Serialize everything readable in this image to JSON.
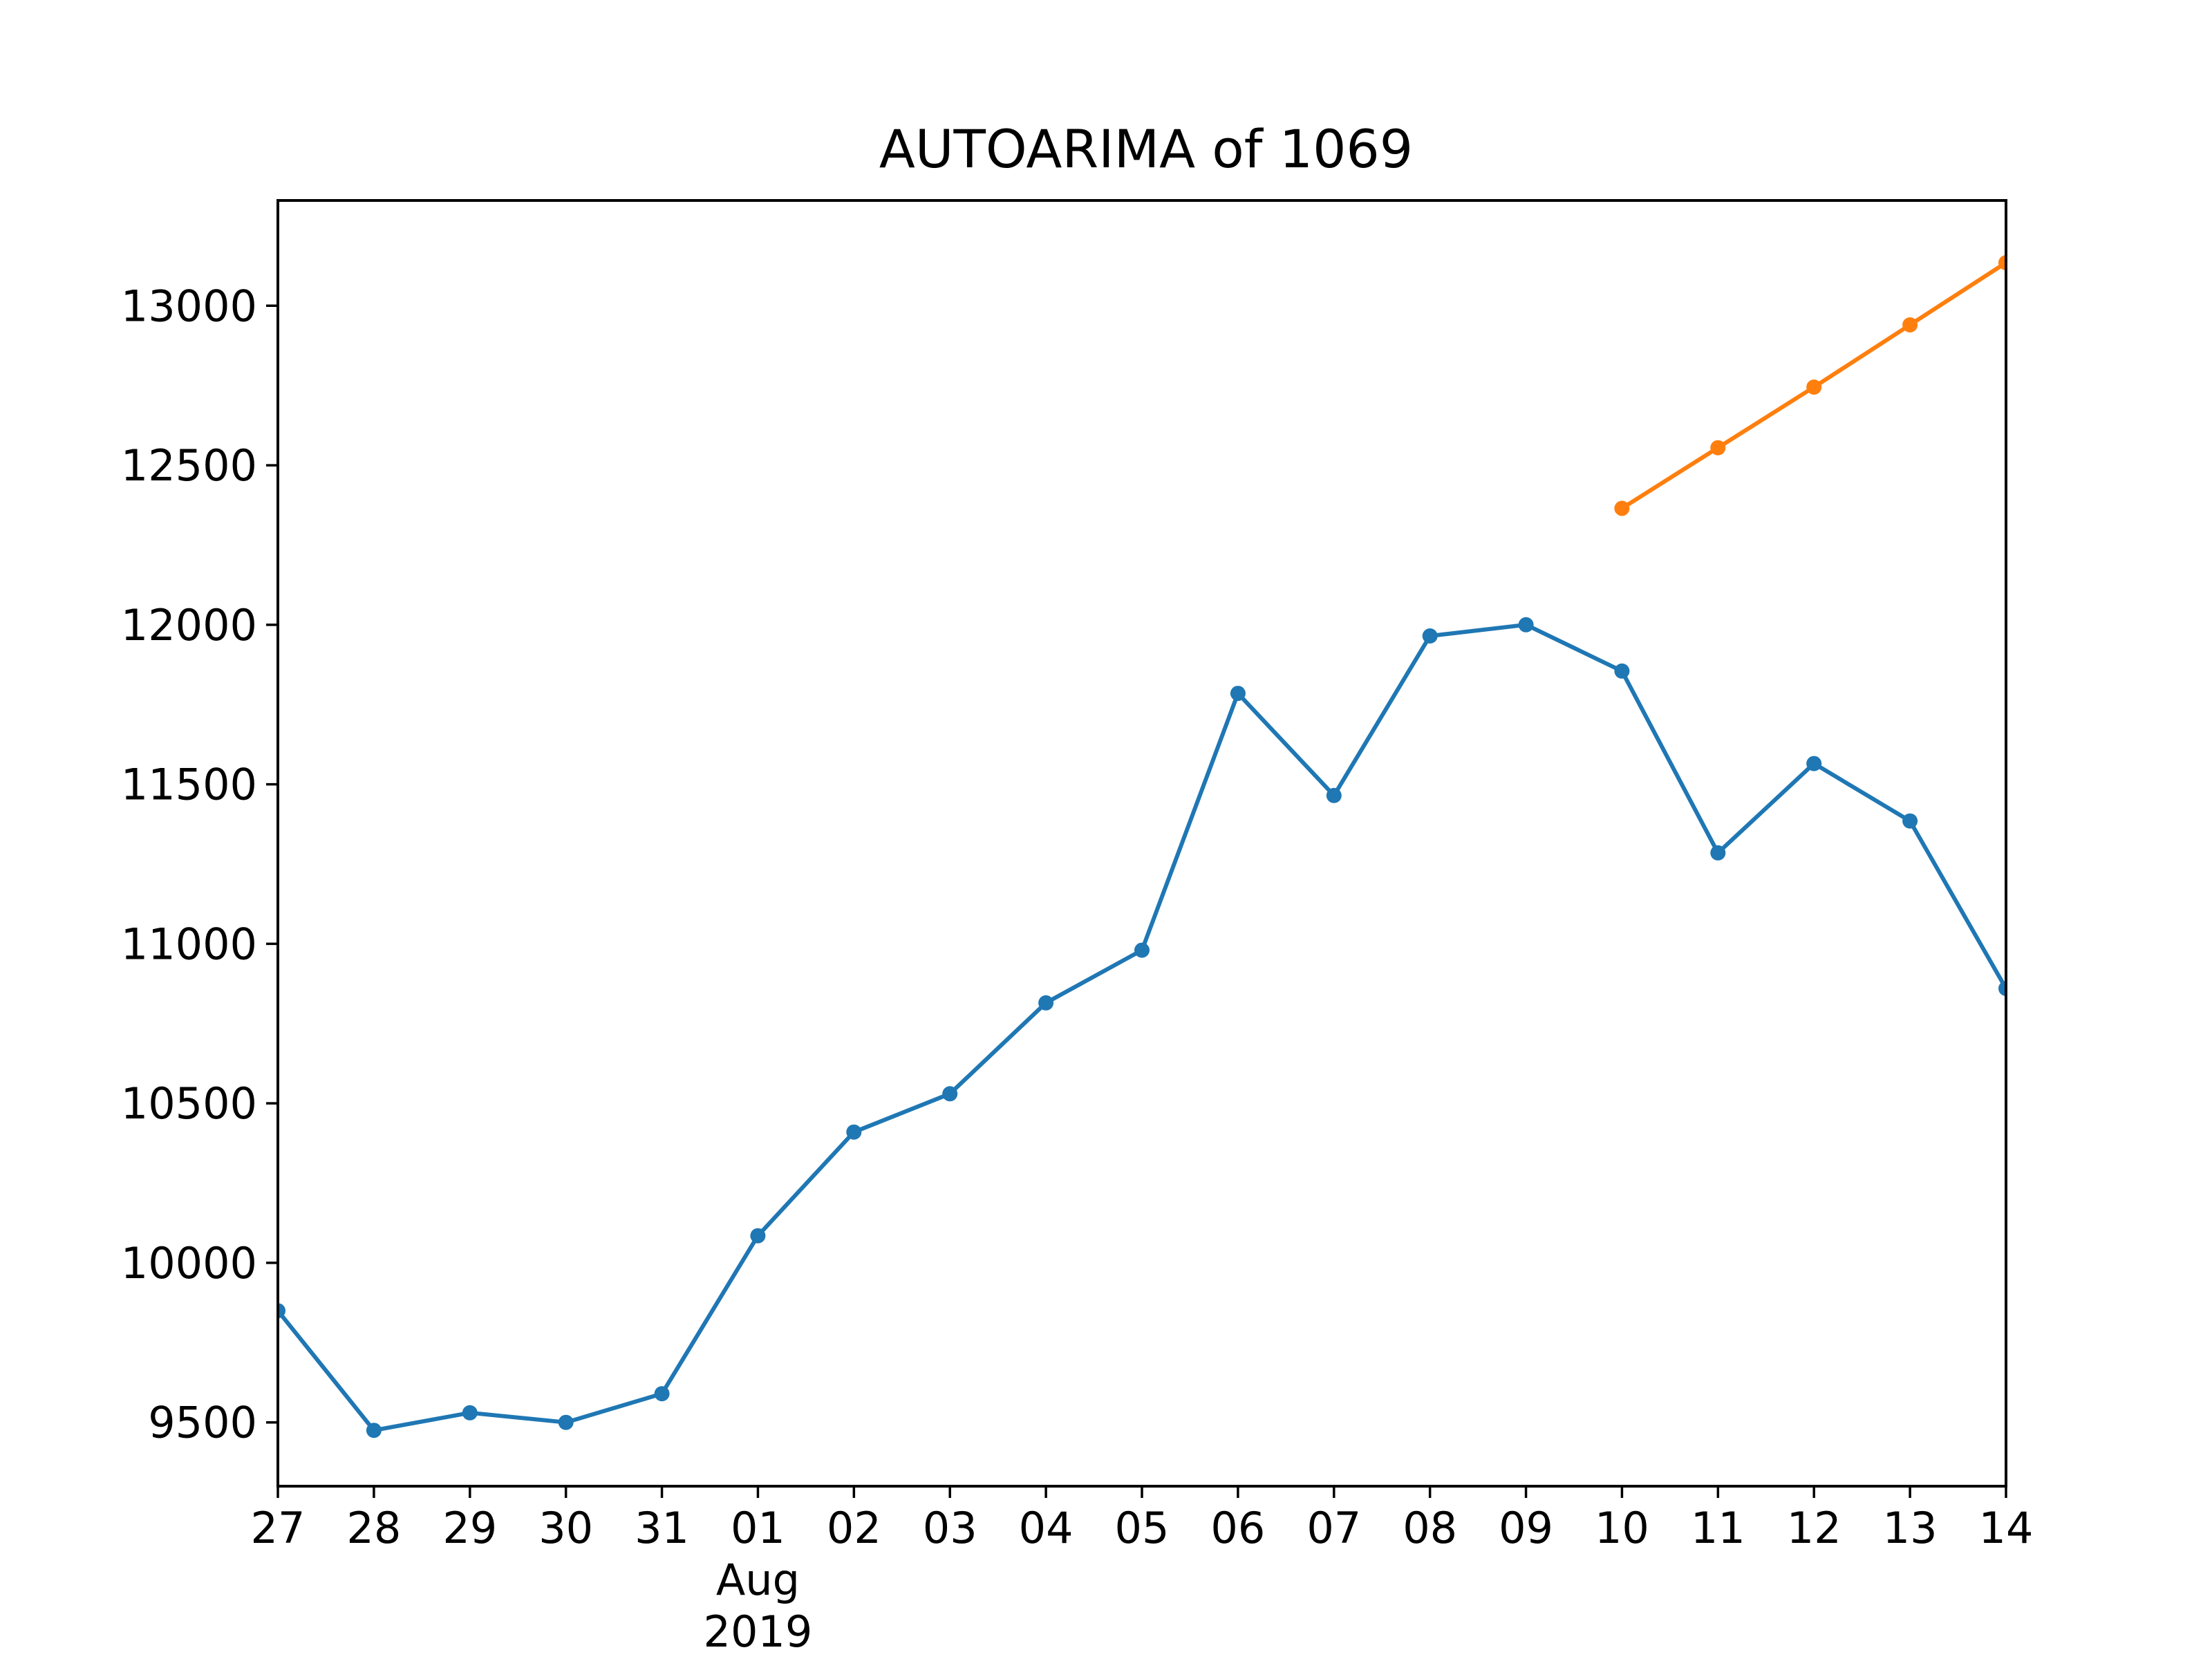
{
  "chart_data": {
    "type": "line",
    "title": "AUTOARIMA of 1069",
    "xlabel": "",
    "ylabel": "",
    "x_axis_type": "date",
    "x_tick_labels": [
      "27",
      "28",
      "29",
      "30",
      "31",
      "01",
      "02",
      "03",
      "04",
      "05",
      "06",
      "07",
      "08",
      "09",
      "10",
      "11",
      "12",
      "13",
      "14"
    ],
    "x_secondary_label": {
      "month": "Aug",
      "year": "2019"
    },
    "y_ticks": [
      9500,
      10000,
      10500,
      11000,
      11500,
      12000,
      12500,
      13000
    ],
    "xlim": [
      "2019-07-27",
      "2019-08-14"
    ],
    "ylim": [
      9300,
      13330
    ],
    "grid": false,
    "legend": "none",
    "series": [
      {
        "color": "#1f77b4",
        "x": [
          "2019-07-27",
          "2019-07-28",
          "2019-07-29",
          "2019-07-30",
          "2019-07-31",
          "2019-08-01",
          "2019-08-02",
          "2019-08-03",
          "2019-08-04",
          "2019-08-05",
          "2019-08-06",
          "2019-08-07",
          "2019-08-08",
          "2019-08-09",
          "2019-08-10",
          "2019-08-11",
          "2019-08-12",
          "2019-08-13",
          "2019-08-14"
        ],
        "values": [
          9850,
          9475,
          9530,
          9500,
          9590,
          10085,
          10410,
          10530,
          10815,
          10980,
          11785,
          11465,
          11965,
          12000,
          11855,
          11285,
          11565,
          11385,
          10860
        ]
      },
      {
        "color": "#ff7f0e",
        "x": [
          "2019-08-10",
          "2019-08-11",
          "2019-08-12",
          "2019-08-13",
          "2019-08-14"
        ],
        "values": [
          12365,
          12555,
          12745,
          12940,
          13135
        ]
      }
    ]
  }
}
